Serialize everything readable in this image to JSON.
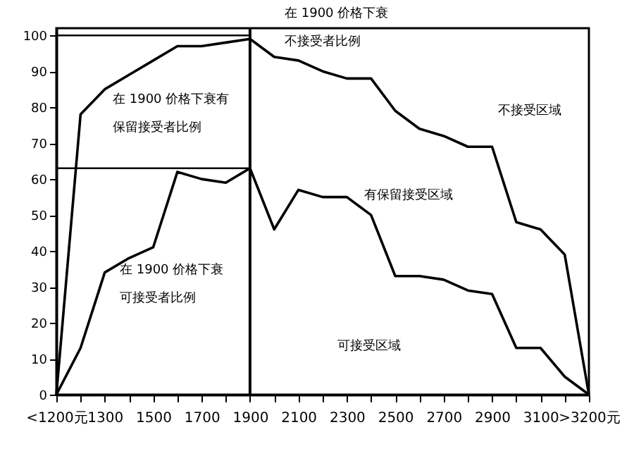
{
  "chart_data": {
    "type": "line",
    "categories": [
      "<1200元",
      null,
      "1300",
      null,
      "1500",
      null,
      "1700",
      null,
      "1900",
      null,
      "2100",
      null,
      "2300",
      null,
      "2500",
      null,
      "2700",
      null,
      "2900",
      null,
      "3100",
      null,
      ">3200元"
    ],
    "series": [
      {
        "color": "#000000",
        "values": [
          0,
          78,
          85,
          89,
          93,
          97,
          97,
          98,
          99,
          94,
          93,
          90,
          88,
          88,
          79,
          74,
          72,
          69,
          69,
          48,
          46,
          39,
          0
        ]
      },
      {
        "color": "#000000",
        "values": [
          0,
          13,
          34,
          38,
          41,
          62,
          60,
          59,
          63,
          46,
          57,
          55,
          55,
          50,
          33,
          33,
          32,
          29,
          28,
          13,
          13,
          5,
          0
        ]
      }
    ],
    "ylim": [
      0,
      102
    ],
    "yticks": [
      0,
      10,
      20,
      30,
      40,
      50,
      60,
      70,
      80,
      90,
      100
    ],
    "ref_lines": [
      {
        "axis": "x",
        "value": "1900"
      },
      {
        "axis": "y",
        "value": 100
      },
      {
        "axis": "y",
        "value": 63
      }
    ],
    "annotations": [
      "在 1900 价格下衰",
      "不接受者比例",
      "在 1900 价格下衰有",
      "保留接受者比例",
      "在 1900 价格下衰",
      "可接受者比例",
      "不接受区域",
      "有保留接受区域",
      "可接受区域"
    ],
    "grid": false,
    "marker": "none",
    "line_style": "solid"
  }
}
